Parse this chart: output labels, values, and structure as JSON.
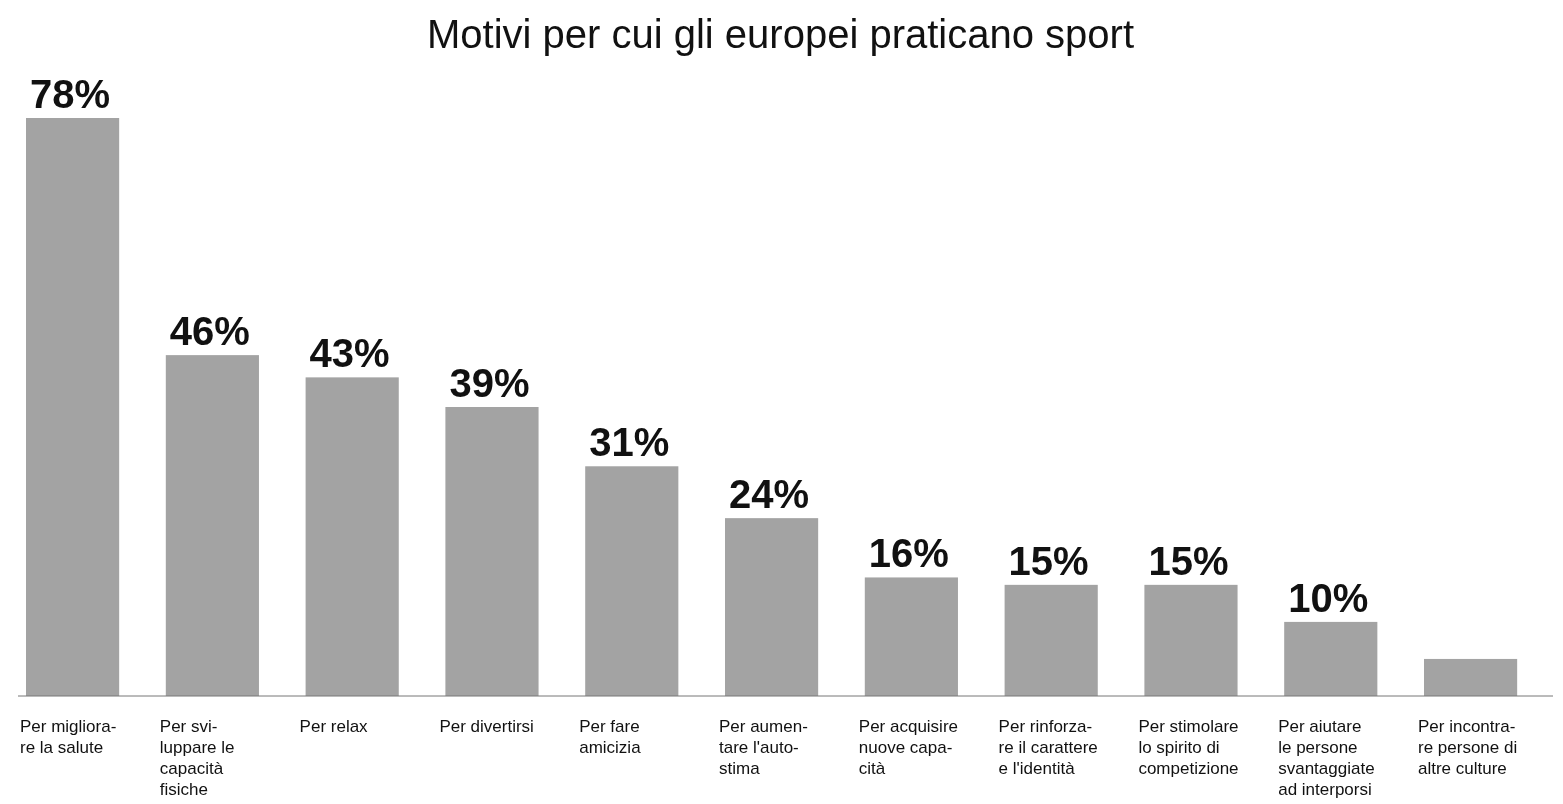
{
  "chart_data": {
    "type": "bar",
    "title": "Motivi per cui gli europei praticano sport",
    "categories": [
      "Per migliora-\nre la salute",
      "Per svi-\nluppare le\ncapacità\nfisiche",
      "Per relax",
      "Per divertirsi",
      "Per fare\namicizia",
      "Per aumen-\ntare l'auto-\nstima",
      "Per acquisire\nnuove capa-\ncità",
      "Per rinforza-\nre il carattere\ne l'identità",
      "Per stimolare\nlo spirito di\ncompetizione",
      "Per aiutare\nle persone\nsvantaggiate\nad interporsi",
      "Per incontra-\nre persone di\naltre culture"
    ],
    "values": [
      78,
      46,
      43,
      39,
      31,
      24,
      16,
      15,
      15,
      10,
      5
    ],
    "value_labels": [
      "78%",
      "46%",
      "43%",
      "39%",
      "31%",
      "24%",
      "16%",
      "15%",
      "15%",
      "10%",
      null
    ],
    "color": "#a3a3a3"
  }
}
